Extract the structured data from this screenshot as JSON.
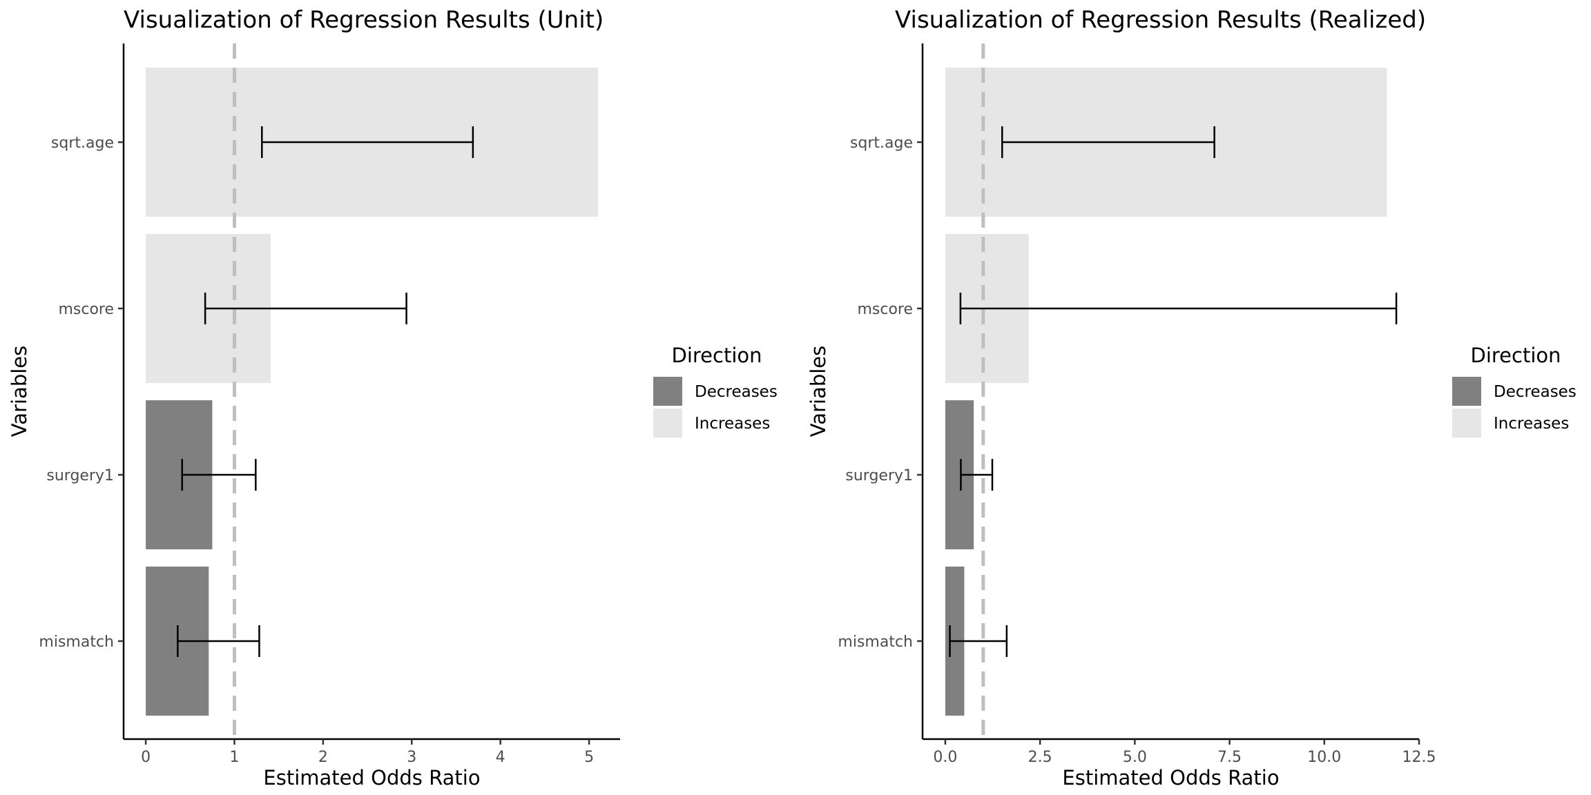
{
  "chart_data": [
    {
      "type": "bar",
      "orientation": "horizontal",
      "title": "Visualization of Regression Results (Unit)",
      "xlabel": "Estimated Odds Ratio",
      "ylabel": "Variables",
      "categories": [
        "sqrt.age",
        "mscore",
        "surgery1",
        "mismatch"
      ],
      "values": [
        5.1,
        1.41,
        0.75,
        0.71
      ],
      "ci_low": [
        1.31,
        0.67,
        0.41,
        0.36
      ],
      "ci_high": [
        3.69,
        2.94,
        1.24,
        1.28
      ],
      "direction": [
        "Increases",
        "Increases",
        "Decreases",
        "Decreases"
      ],
      "reference_line": 1,
      "xlim": [
        -0.25,
        5.35
      ],
      "xticks": [
        0,
        1,
        2,
        3,
        4,
        5
      ],
      "xtick_labels": [
        "0",
        "1",
        "2",
        "3",
        "4",
        "5"
      ],
      "grid": false,
      "legend": {
        "title": "Direction",
        "position": "right",
        "entries": [
          {
            "label": "Decreases",
            "color": "#808080"
          },
          {
            "label": "Increases",
            "color": "#e6e6e6"
          }
        ]
      }
    },
    {
      "type": "bar",
      "orientation": "horizontal",
      "title": "Visualization of Regression Results (Realized)",
      "xlabel": "Estimated Odds Ratio",
      "ylabel": "Variables",
      "categories": [
        "sqrt.age",
        "mscore",
        "surgery1",
        "mismatch"
      ],
      "values": [
        11.65,
        2.2,
        0.75,
        0.5
      ],
      "ci_low": [
        1.5,
        0.4,
        0.41,
        0.12
      ],
      "ci_high": [
        7.1,
        11.9,
        1.24,
        1.62
      ],
      "direction": [
        "Increases",
        "Increases",
        "Decreases",
        "Decreases"
      ],
      "reference_line": 1,
      "xlim": [
        -0.6,
        12.5
      ],
      "xticks": [
        0,
        2.5,
        5,
        7.5,
        10,
        12.5
      ],
      "xtick_labels": [
        "0.0",
        "2.5",
        "5.0",
        "7.5",
        "10.0",
        "12.5"
      ],
      "grid": false,
      "legend": {
        "title": "Direction",
        "position": "right",
        "entries": [
          {
            "label": "Decreases",
            "color": "#808080"
          },
          {
            "label": "Increases",
            "color": "#e6e6e6"
          }
        ]
      }
    }
  ]
}
